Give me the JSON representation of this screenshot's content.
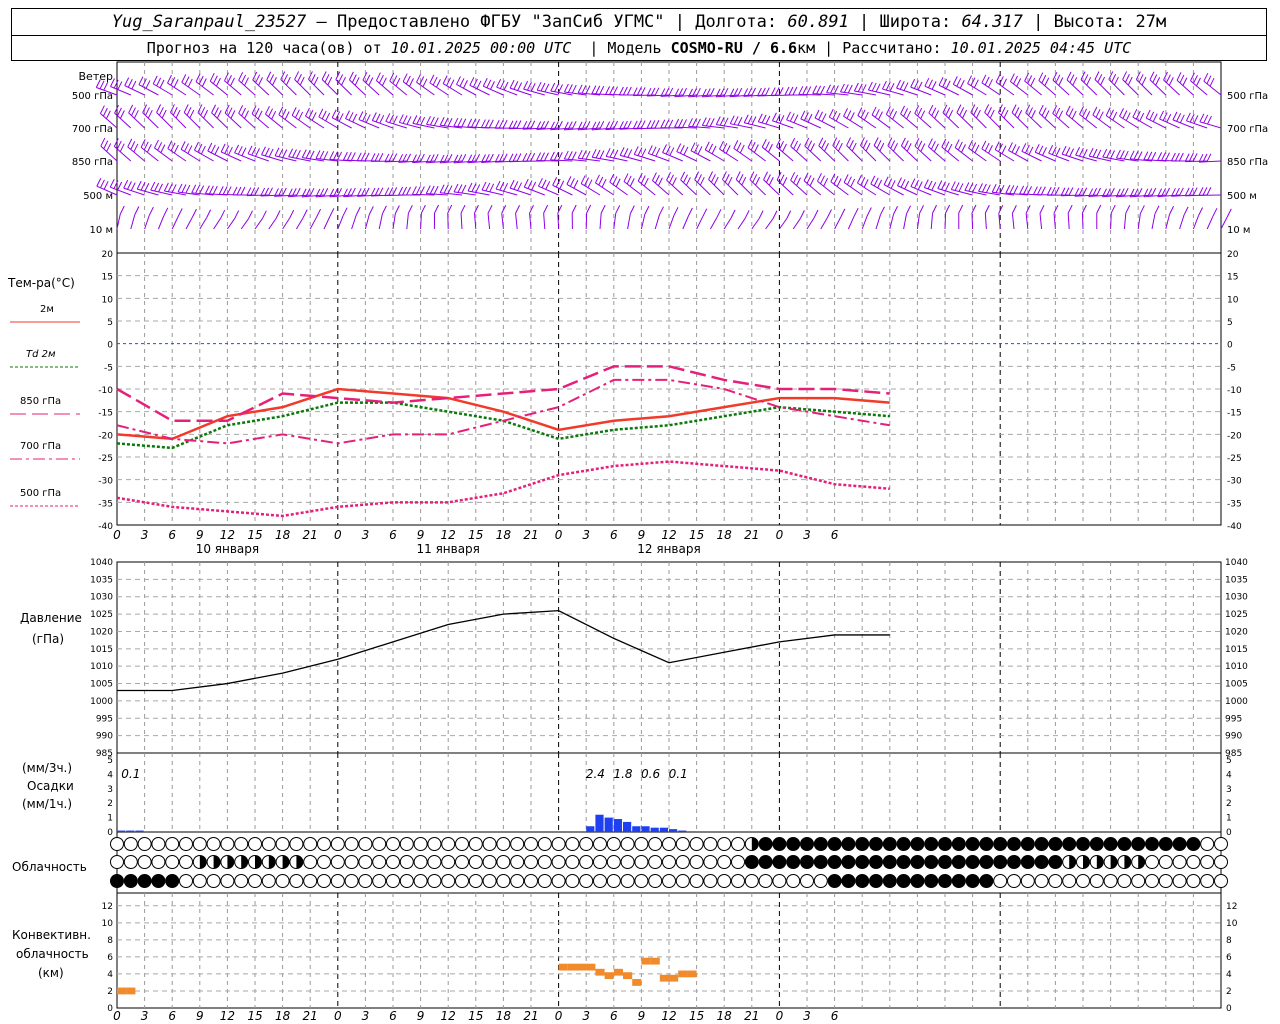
{
  "header": {
    "station": "Yug_Saranpaul_23527",
    "dash": "–",
    "provider": "Предоставлено ФГБУ \"ЗапСиб УГМС\"",
    "lon_label": "Долгота:",
    "lon_value": "60.891",
    "lat_label": "Широта:",
    "lat_value": "64.317",
    "alt_label": "Высота:",
    "alt_value": "27м",
    "forecast_label": "Прогноз на 120 часа(ов) от",
    "forecast_from": "10.01.2025 00:00 UTC",
    "model_label": "Модель",
    "model_name": "COSMO-RU / 6.6",
    "model_unit": "км",
    "computed_label": "Рассчитано:",
    "computed_at": "10.01.2025 04:45 UTC"
  },
  "colors": {
    "wind": "#8e00e6",
    "t2m": "#f03a2a",
    "td2m": "#0a7a0a",
    "t850": "#e6207a",
    "t700": "#e6207a",
    "t500": "#e6207a",
    "zero_line": "#2a4ae6",
    "pressure": "#000000",
    "precip": "#1e40f0",
    "convective": "#f08a2a"
  },
  "x_axis": {
    "hour_labels": [
      "0",
      "3",
      "6",
      "9",
      "12",
      "15",
      "18",
      "21",
      "0",
      "3",
      "6",
      "9",
      "12",
      "15",
      "18",
      "21",
      "0",
      "3",
      "6",
      "9",
      "12",
      "15",
      "18",
      "21",
      "0",
      "3",
      "6"
    ],
    "day_labels": [
      "10 января",
      "11 января",
      "12 января"
    ]
  },
  "wind_panel": {
    "title": "Ветер",
    "levels": [
      "500 гПа",
      "700 гПа",
      "850 гПа",
      "500 м",
      "10  м"
    ]
  },
  "temp_panel": {
    "title": "Тем-ра(°С)",
    "legend": [
      {
        "label": "2м",
        "style": "solid"
      },
      {
        "label": "Td  2м",
        "style": "dotted"
      },
      {
        "label": "850 гПа",
        "style": "longdash"
      },
      {
        "label": "700 гПа",
        "style": "dashdot"
      },
      {
        "label": "500 гПа",
        "style": "shortdash"
      }
    ],
    "ticks": [
      "20",
      "15",
      "10",
      "5",
      "0",
      "-5",
      "-10",
      "-15",
      "-20",
      "-25",
      "-30",
      "-35",
      "-40"
    ]
  },
  "pressure_panel": {
    "title_1": "Давление",
    "title_2": "(гПа)",
    "ticks": [
      "1040",
      "1035",
      "1030",
      "1025",
      "1020",
      "1015",
      "1010",
      "1005",
      "1000",
      "995",
      "990",
      "985"
    ]
  },
  "precip_panel": {
    "label_1": "(мм/3ч.)",
    "label_2": "Осадки",
    "label_3": "(мм/1ч.)",
    "ticks": [
      "5",
      "4",
      "3",
      "2",
      "1",
      "0"
    ],
    "annotations": [
      {
        "hour": 1.5,
        "text": "0.1"
      },
      {
        "hour": 52,
        "text": "2.4"
      },
      {
        "hour": 55,
        "text": "1.8"
      },
      {
        "hour": 58,
        "text": "0.6"
      },
      {
        "hour": 61,
        "text": "0.1"
      }
    ]
  },
  "cloud_panel": {
    "title": "Облачность"
  },
  "conv_panel": {
    "label_1": "Конвективн.",
    "label_2": "облачность",
    "label_3": "(км)",
    "ticks": [
      "12",
      "10",
      "8",
      "6",
      "4",
      "2",
      "0"
    ]
  },
  "chart_data": [
    {
      "type": "line",
      "title": "Тем-ра(°С)",
      "x_unit": "hours from 10.01.2025 00:00 UTC",
      "ylim": [
        -40,
        20
      ],
      "series": [
        {
          "name": "2м",
          "x": [
            0,
            6,
            12,
            18,
            24,
            30,
            36,
            42,
            48,
            54,
            60,
            66,
            72,
            78,
            84
          ],
          "values": [
            -20,
            -21,
            -16,
            -14,
            -10,
            -11,
            -12,
            -15,
            -19,
            -17,
            -16,
            -14,
            -12,
            -12,
            -13
          ]
        },
        {
          "name": "Td  2м",
          "x": [
            0,
            6,
            12,
            18,
            24,
            30,
            36,
            42,
            48,
            54,
            60,
            66,
            72,
            78,
            84
          ],
          "values": [
            -22,
            -23,
            -18,
            -16,
            -13,
            -13,
            -15,
            -17,
            -21,
            -19,
            -18,
            -16,
            -14,
            -15,
            -16
          ]
        },
        {
          "name": "850 гПа",
          "x": [
            0,
            6,
            12,
            18,
            24,
            30,
            36,
            42,
            48,
            54,
            60,
            66,
            72,
            78,
            84
          ],
          "values": [
            -10,
            -17,
            -17,
            -11,
            -12,
            -13,
            -12,
            -11,
            -10,
            -5,
            -5,
            -8,
            -10,
            -10,
            -11
          ]
        },
        {
          "name": "700 гПа",
          "x": [
            0,
            6,
            12,
            18,
            24,
            30,
            36,
            42,
            48,
            54,
            60,
            66,
            72,
            78,
            84
          ],
          "values": [
            -18,
            -21,
            -22,
            -20,
            -22,
            -20,
            -20,
            -17,
            -14,
            -8,
            -8,
            -10,
            -14,
            -16,
            -18
          ]
        },
        {
          "name": "500 гПа",
          "x": [
            0,
            6,
            12,
            18,
            24,
            30,
            36,
            42,
            48,
            54,
            60,
            66,
            72,
            78,
            84
          ],
          "values": [
            -34,
            -36,
            -37,
            -38,
            -36,
            -35,
            -35,
            -33,
            -29,
            -27,
            -26,
            -27,
            -28,
            -31,
            -32
          ]
        }
      ]
    },
    {
      "type": "line",
      "title": "Давление",
      "ylim": [
        985,
        1040
      ],
      "series": [
        {
          "name": "Давление",
          "x": [
            0,
            6,
            12,
            18,
            24,
            30,
            36,
            42,
            48,
            54,
            60,
            66,
            72,
            78,
            84
          ],
          "values": [
            1003,
            1003,
            1005,
            1008,
            1012,
            1017,
            1022,
            1025,
            1026,
            1018,
            1011,
            1014,
            1017,
            1019,
            1019
          ]
        }
      ]
    },
    {
      "type": "bar",
      "title": "Осадки",
      "ylim": [
        0,
        5
      ],
      "series": [
        {
          "name": "Осадки",
          "x": [
            0,
            1,
            2,
            51,
            52,
            53,
            54,
            55,
            56,
            57,
            58,
            59,
            60,
            61,
            62
          ],
          "values": [
            0.1,
            0.1,
            0.1,
            0.4,
            1.2,
            1.0,
            0.9,
            0.7,
            0.4,
            0.4,
            0.3,
            0.3,
            0.2,
            0.1,
            0.05
          ]
        }
      ]
    },
    {
      "type": "bar",
      "title": "Конвективн. облачность",
      "ylim": [
        0,
        13
      ],
      "series": [
        {
          "name": "Конвективн. облачность",
          "x": [
            0,
            1,
            48,
            49,
            50,
            51,
            52,
            53,
            54,
            55,
            56,
            57,
            58,
            59,
            60,
            61,
            62
          ],
          "values": [
            2,
            2,
            4.8,
            4.8,
            4.8,
            4.8,
            4.2,
            3.8,
            4.2,
            3.8,
            3,
            5.5,
            5.5,
            3.5,
            3.5,
            4,
            4
          ]
        }
      ]
    }
  ]
}
